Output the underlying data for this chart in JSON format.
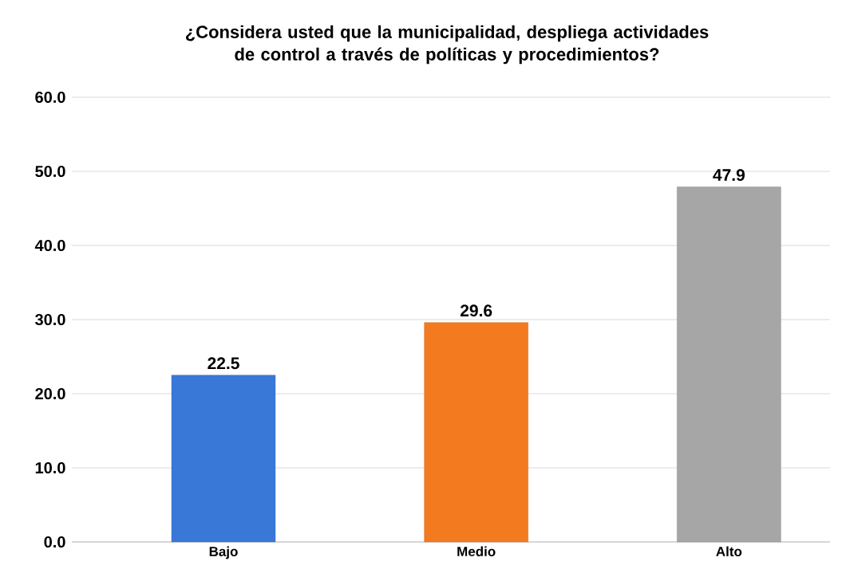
{
  "chart_data": {
    "type": "bar",
    "title": "¿Considera usted que la municipalidad, despliega actividades de control a través de políticas y procedimientos?",
    "categories": [
      "Bajo",
      "Medio",
      "Alto"
    ],
    "values": [
      22.5,
      29.6,
      47.9
    ],
    "colors": [
      "#3a78d8",
      "#f47a20",
      "#a6a6a6"
    ],
    "ylim": [
      0,
      60
    ],
    "yticks": [
      {
        "value": 0,
        "label": "0.0"
      },
      {
        "value": 10,
        "label": "10.0"
      },
      {
        "value": 20,
        "label": "20.0"
      },
      {
        "value": 30,
        "label": "30.0"
      },
      {
        "value": 40,
        "label": "40.0"
      },
      {
        "value": 50,
        "label": "50.0"
      },
      {
        "value": 60,
        "label": "60.0"
      }
    ],
    "grid": "y",
    "data_labels": true
  }
}
